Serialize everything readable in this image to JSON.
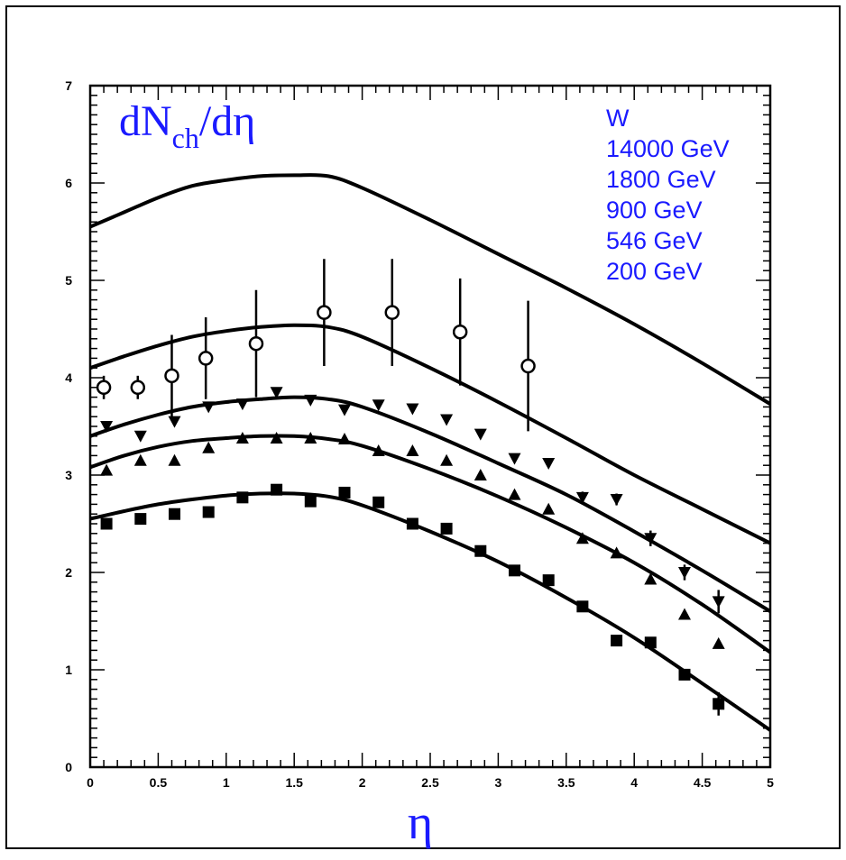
{
  "chart_data": {
    "type": "line",
    "title_main": "dN",
    "title_sub": "ch",
    "title_tail": "/dη",
    "xlabel": "η",
    "ylabel": "",
    "xlim": [
      0,
      5
    ],
    "ylim": [
      0,
      7
    ],
    "xticks": [
      "0",
      "0.5",
      "1",
      "1.5",
      "2",
      "2.5",
      "3",
      "3.5",
      "4",
      "4.5",
      "5"
    ],
    "yticks": [
      "0",
      "1",
      "2",
      "3",
      "4",
      "5",
      "6",
      "7"
    ],
    "legend": {
      "heading": "W",
      "entries": [
        "14000 GeV",
        "1800 GeV",
        "900 GeV",
        "546 GeV",
        "200 GeV"
      ],
      "placement": "top-right"
    },
    "colors": {
      "text_accent": "#1a1aff",
      "ink": "#000000"
    },
    "curves": [
      {
        "energy": "14000 GeV",
        "x": [
          0,
          0.25,
          0.5,
          0.75,
          1,
          1.25,
          1.5,
          1.75,
          2,
          2.5,
          3,
          3.5,
          4,
          4.5,
          5
        ],
        "y": [
          5.55,
          5.7,
          5.85,
          5.97,
          6.03,
          6.07,
          6.08,
          6.07,
          5.95,
          5.62,
          5.27,
          4.92,
          4.55,
          4.15,
          3.73
        ]
      },
      {
        "energy": "1800 GeV",
        "x": [
          0,
          0.25,
          0.5,
          0.75,
          1,
          1.25,
          1.5,
          1.75,
          2,
          2.5,
          3,
          3.5,
          4,
          4.5,
          5
        ],
        "y": [
          4.1,
          4.22,
          4.33,
          4.42,
          4.48,
          4.52,
          4.54,
          4.52,
          4.42,
          4.1,
          3.75,
          3.38,
          3.0,
          2.65,
          2.3
        ]
      },
      {
        "energy": "900 GeV",
        "x": [
          0,
          0.25,
          0.5,
          0.75,
          1,
          1.25,
          1.5,
          1.75,
          2,
          2.5,
          3,
          3.5,
          4,
          4.5,
          5
        ],
        "y": [
          3.4,
          3.52,
          3.62,
          3.7,
          3.75,
          3.78,
          3.8,
          3.78,
          3.7,
          3.43,
          3.12,
          2.8,
          2.42,
          2.02,
          1.6
        ]
      },
      {
        "energy": "546 GeV",
        "x": [
          0,
          0.25,
          0.5,
          0.75,
          1,
          1.25,
          1.5,
          1.75,
          2,
          2.5,
          3,
          3.5,
          4,
          4.5,
          5
        ],
        "y": [
          3.08,
          3.2,
          3.29,
          3.35,
          3.38,
          3.4,
          3.4,
          3.37,
          3.3,
          3.06,
          2.78,
          2.46,
          2.1,
          1.67,
          1.18
        ]
      },
      {
        "energy": "200 GeV",
        "x": [
          0,
          0.25,
          0.5,
          0.75,
          1,
          1.25,
          1.5,
          1.75,
          2,
          2.5,
          3,
          3.5,
          4,
          4.5,
          5
        ],
        "y": [
          2.55,
          2.63,
          2.7,
          2.75,
          2.79,
          2.81,
          2.81,
          2.78,
          2.69,
          2.42,
          2.11,
          1.74,
          1.33,
          0.86,
          0.38
        ]
      }
    ],
    "series": [
      {
        "energy": "1800 GeV",
        "marker": "open-circle",
        "x": [
          0.1,
          0.35,
          0.6,
          0.85,
          1.22,
          1.72,
          2.22,
          2.72,
          3.22
        ],
        "y": [
          3.9,
          3.9,
          4.02,
          4.2,
          4.35,
          4.67,
          4.67,
          4.47,
          4.12
        ],
        "err": [
          0.12,
          0.12,
          0.42,
          0.42,
          0.55,
          0.55,
          0.55,
          0.55,
          0.67
        ]
      },
      {
        "energy": "900 GeV",
        "marker": "filled-triangle-down",
        "x": [
          0.12,
          0.37,
          0.62,
          0.87,
          1.12,
          1.37,
          1.62,
          1.87,
          2.12,
          2.37,
          2.62,
          2.87,
          3.12,
          3.37,
          3.62,
          3.87,
          4.12,
          4.37,
          4.62
        ],
        "y": [
          3.5,
          3.4,
          3.55,
          3.7,
          3.73,
          3.85,
          3.77,
          3.67,
          3.72,
          3.68,
          3.57,
          3.42,
          3.17,
          3.12,
          2.77,
          2.75,
          2.35,
          2.0,
          1.7
        ],
        "err": [
          0.03,
          0.03,
          0.03,
          0.03,
          0.03,
          0.03,
          0.03,
          0.03,
          0.03,
          0.03,
          0.03,
          0.03,
          0.03,
          0.03,
          0.06,
          0.06,
          0.08,
          0.08,
          0.12
        ]
      },
      {
        "energy": "546 GeV",
        "marker": "filled-triangle-up",
        "x": [
          0.12,
          0.37,
          0.62,
          0.87,
          1.12,
          1.37,
          1.62,
          1.87,
          2.12,
          2.37,
          2.62,
          2.87,
          3.12,
          3.37,
          3.62,
          3.87,
          4.12,
          4.37,
          4.62
        ],
        "y": [
          3.05,
          3.15,
          3.15,
          3.28,
          3.38,
          3.38,
          3.38,
          3.37,
          3.25,
          3.25,
          3.15,
          3.0,
          2.8,
          2.65,
          2.35,
          2.2,
          1.93,
          1.57,
          1.27
        ],
        "err": [
          0,
          0,
          0,
          0,
          0,
          0,
          0,
          0,
          0,
          0,
          0,
          0,
          0,
          0,
          0,
          0,
          0,
          0,
          0
        ]
      },
      {
        "energy": "200 GeV",
        "marker": "filled-square",
        "x": [
          0.12,
          0.37,
          0.62,
          0.87,
          1.12,
          1.37,
          1.62,
          1.87,
          2.12,
          2.37,
          2.62,
          2.87,
          3.12,
          3.37,
          3.62,
          3.87,
          4.12,
          4.37,
          4.62
        ],
        "y": [
          2.5,
          2.55,
          2.6,
          2.62,
          2.77,
          2.85,
          2.73,
          2.82,
          2.72,
          2.5,
          2.45,
          2.22,
          2.02,
          1.92,
          1.65,
          1.3,
          1.28,
          0.95,
          0.65
        ],
        "err": [
          0.02,
          0.02,
          0.02,
          0.02,
          0.02,
          0.02,
          0.02,
          0.02,
          0.02,
          0.02,
          0.02,
          0.02,
          0.02,
          0.02,
          0.03,
          0.03,
          0.05,
          0.05,
          0.12
        ]
      }
    ]
  }
}
